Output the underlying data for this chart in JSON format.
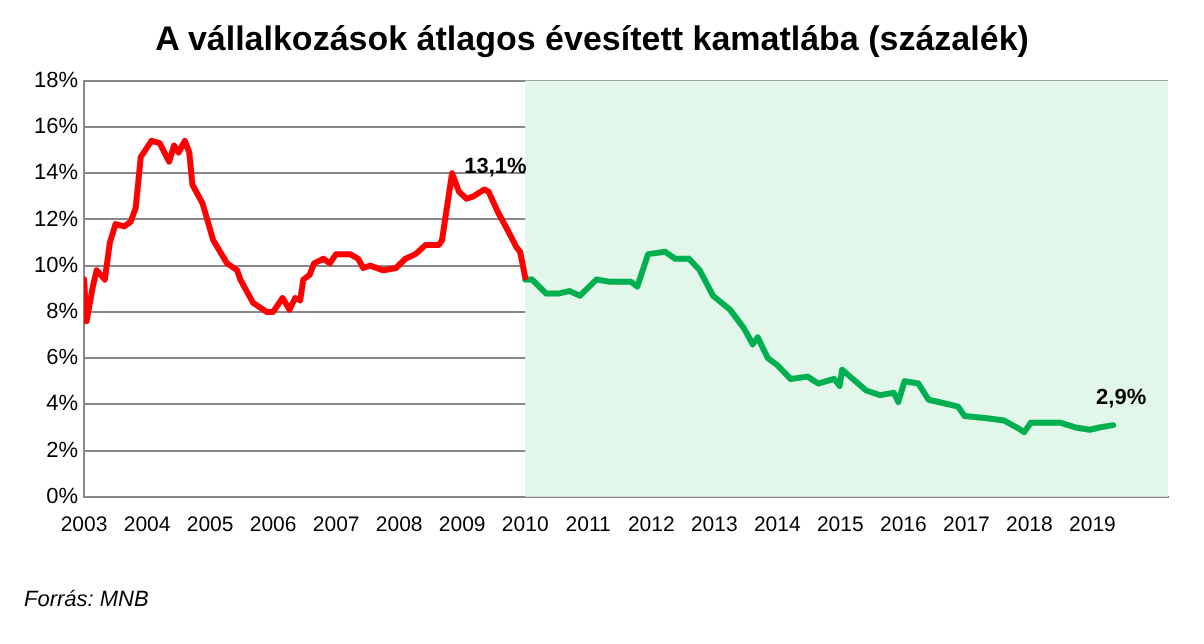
{
  "chart_data": {
    "type": "line",
    "title": "A vállalkozások átlagos évesített kamatlába (százalék)",
    "series": [
      {
        "color": "#ff0000",
        "x": [
          2003.0,
          2003.04,
          2003.14,
          2003.2,
          2003.33,
          2003.41,
          2003.5,
          2003.64,
          2003.74,
          2003.82,
          2003.9,
          2004.07,
          2004.2,
          2004.35,
          2004.43,
          2004.5,
          2004.6,
          2004.67,
          2004.72,
          2004.88,
          2005.05,
          2005.27,
          2005.43,
          2005.48,
          2005.58,
          2005.68,
          2005.9,
          2006.0,
          2006.15,
          2006.26,
          2006.35,
          2006.43,
          2006.48,
          2006.58,
          2006.65,
          2006.8,
          2006.9,
          2007.0,
          2007.22,
          2007.35,
          2007.43,
          2007.54,
          2007.75,
          2007.95,
          2008.1,
          2008.26,
          2008.42,
          2008.63,
          2008.68,
          2008.84,
          2008.95,
          2009.07,
          2009.18,
          2009.35,
          2009.42,
          2009.57,
          2009.73,
          2009.86,
          2009.92,
          2010.0
        ],
        "values": [
          9.4,
          7.6,
          9.1,
          9.8,
          9.4,
          11.0,
          11.8,
          11.7,
          11.9,
          12.5,
          14.7,
          15.4,
          15.3,
          14.5,
          15.2,
          14.9,
          15.4,
          14.9,
          13.5,
          12.7,
          11.1,
          10.1,
          9.8,
          9.4,
          8.9,
          8.4,
          8.0,
          8.0,
          8.6,
          8.1,
          8.6,
          8.5,
          9.4,
          9.6,
          10.1,
          10.3,
          10.1,
          10.5,
          10.5,
          10.3,
          9.9,
          10.0,
          9.8,
          9.9,
          10.3,
          10.5,
          10.9,
          10.9,
          11.1,
          14.0,
          13.2,
          12.9,
          13.0,
          13.3,
          13.2,
          12.3,
          11.5,
          10.8,
          10.6,
          9.5
        ]
      },
      {
        "color": "#00b050",
        "x": [
          2010.0,
          2010.11,
          2010.33,
          2010.54,
          2010.7,
          2010.87,
          2011.13,
          2011.35,
          2011.68,
          2011.78,
          2011.95,
          2012.22,
          2012.38,
          2012.6,
          2012.77,
          2012.98,
          2013.25,
          2013.47,
          2013.61,
          2013.69,
          2013.85,
          2014.0,
          2014.21,
          2014.48,
          2014.65,
          2014.9,
          2014.99,
          2015.03,
          2015.2,
          2015.41,
          2015.63,
          2015.85,
          2015.92,
          2016.02,
          2016.24,
          2016.4,
          2016.56,
          2016.87,
          2016.97,
          2017.33,
          2017.6,
          2017.8,
          2017.92,
          2018.02,
          2018.24,
          2018.5,
          2018.73,
          2018.96,
          2019.11,
          2019.33
        ],
        "values": [
          9.4,
          9.4,
          8.8,
          8.8,
          8.9,
          8.7,
          9.4,
          9.3,
          9.3,
          9.1,
          10.5,
          10.6,
          10.3,
          10.3,
          9.8,
          8.7,
          8.1,
          7.3,
          6.6,
          6.9,
          6.0,
          5.7,
          5.1,
          5.2,
          4.9,
          5.1,
          4.8,
          5.5,
          5.1,
          4.6,
          4.4,
          4.5,
          4.1,
          5.0,
          4.9,
          4.2,
          4.1,
          3.9,
          3.5,
          3.4,
          3.3,
          3.0,
          2.8,
          3.2,
          3.2,
          3.2,
          3.0,
          2.9,
          3.0,
          3.1
        ]
      }
    ],
    "xlim": [
      2003,
      2020.2
    ],
    "xticks": [
      2003,
      2004,
      2005,
      2006,
      2007,
      2008,
      2009,
      2010,
      2011,
      2012,
      2013,
      2014,
      2015,
      2016,
      2017,
      2018,
      2019
    ],
    "ylim": [
      0,
      18
    ],
    "yticks": [
      {
        "value": 0,
        "label": "0%"
      },
      {
        "value": 2,
        "label": "2%"
      },
      {
        "value": 4,
        "label": "4%"
      },
      {
        "value": 6,
        "label": "6%"
      },
      {
        "value": 8,
        "label": "8%"
      },
      {
        "value": 10,
        "label": "10%"
      },
      {
        "value": 12,
        "label": "12%"
      },
      {
        "value": 14,
        "label": "14%"
      },
      {
        "value": 16,
        "label": "16%"
      },
      {
        "value": 18,
        "label": "18%"
      }
    ],
    "grid": "y",
    "legend": false,
    "marker": "none",
    "line_style": "solid",
    "bands": [
      {
        "axis": "x",
        "from": 2010,
        "to": 2020.2,
        "color": "#e2f6e9"
      }
    ],
    "annotations": [
      {
        "text": "13,1%",
        "x": 2009.4,
        "y": 13.1
      },
      {
        "text": "2,9%",
        "x": 2019.33,
        "y": 3.1
      },
      "Forrás: MNB"
    ]
  }
}
